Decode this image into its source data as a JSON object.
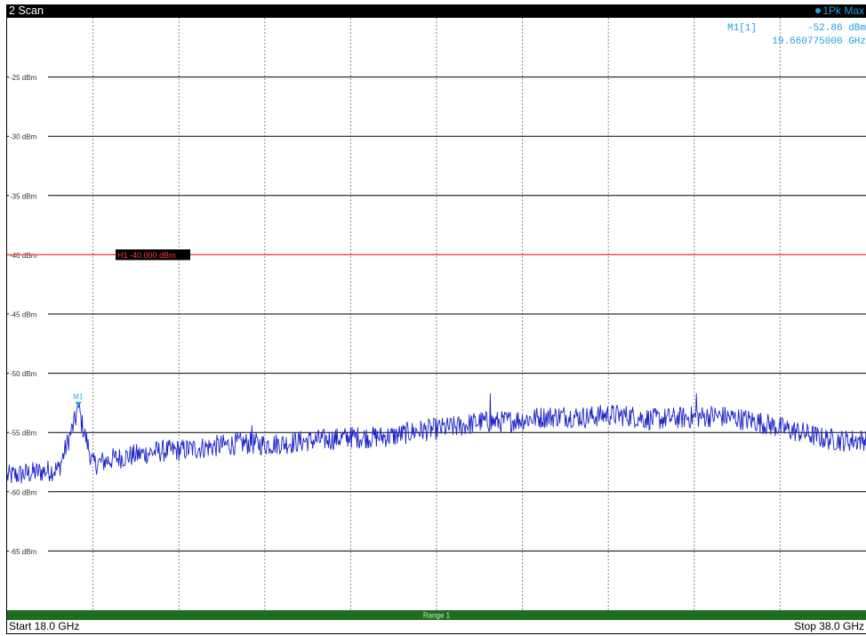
{
  "window": {
    "title": "2 Scan",
    "detector_label": "1Pk Max"
  },
  "marker_readout": {
    "name": "M1[1]",
    "level": "-52.86 dBm",
    "frequency": "19.660775000 GHz"
  },
  "display_line": {
    "label": "H1 -40.000 dBm",
    "level_dbm": -40,
    "color": "#ff3b3b"
  },
  "range_bar": {
    "label": "Range 1",
    "color": "#1f6e1f"
  },
  "footer": {
    "start": "Start 18.0 GHz",
    "stop": "Stop 38.0 GHz"
  },
  "colors": {
    "trace": "#1a22c8",
    "marker": "#1f9fe0",
    "grid": "#000000"
  },
  "chart_data": {
    "type": "line",
    "x_unit": "GHz",
    "y_unit": "dBm",
    "xlim": [
      18.0,
      38.0
    ],
    "ylim": [
      -70,
      -20
    ],
    "y_ticks": [
      {
        "value": -25,
        "label": "-25 dBm"
      },
      {
        "value": -30,
        "label": "-30 dBm"
      },
      {
        "value": -35,
        "label": "-35 dBm"
      },
      {
        "value": -40,
        "label": "-40 dBm"
      },
      {
        "value": -45,
        "label": "-45 dBm"
      },
      {
        "value": -50,
        "label": "-50 dBm"
      },
      {
        "value": -55,
        "label": "-55 dBm"
      },
      {
        "value": -60,
        "label": "-60 dBm"
      },
      {
        "value": -65,
        "label": "-65 dBm"
      }
    ],
    "x_grid_count": 10,
    "grid": true,
    "series": [
      {
        "x": [
          18.0,
          18.4,
          18.8,
          19.2,
          19.66,
          20.0,
          20.5,
          21.0,
          21.5,
          22.0,
          22.5,
          23.0,
          23.5,
          24.0,
          24.5,
          25.0,
          25.5,
          26.0,
          26.5,
          27.0,
          27.5,
          28.0,
          28.5,
          29.0,
          29.5,
          30.0,
          30.5,
          31.0,
          31.5,
          32.0,
          32.5,
          33.0,
          33.5,
          34.0,
          34.5,
          35.0,
          35.5,
          36.0,
          36.5,
          37.0,
          37.5,
          38.0
        ],
        "y": [
          -58.4,
          -58.2,
          -58.0,
          -57.8,
          -52.86,
          -57.4,
          -56.9,
          -56.6,
          -56.3,
          -56.2,
          -56.0,
          -55.8,
          -55.6,
          -55.7,
          -55.6,
          -55.4,
          -55.3,
          -55.1,
          -55.1,
          -55.0,
          -54.6,
          -54.4,
          -54.2,
          -53.8,
          -53.8,
          -53.6,
          -53.4,
          -53.3,
          -53.4,
          -53.2,
          -53.3,
          -53.6,
          -53.5,
          -53.4,
          -53.3,
          -53.5,
          -53.8,
          -54.3,
          -54.7,
          -55.2,
          -55.4,
          -55.3
        ]
      }
    ],
    "markers": [
      {
        "name": "M1",
        "x": 19.66,
        "y": -52.86
      }
    ]
  }
}
